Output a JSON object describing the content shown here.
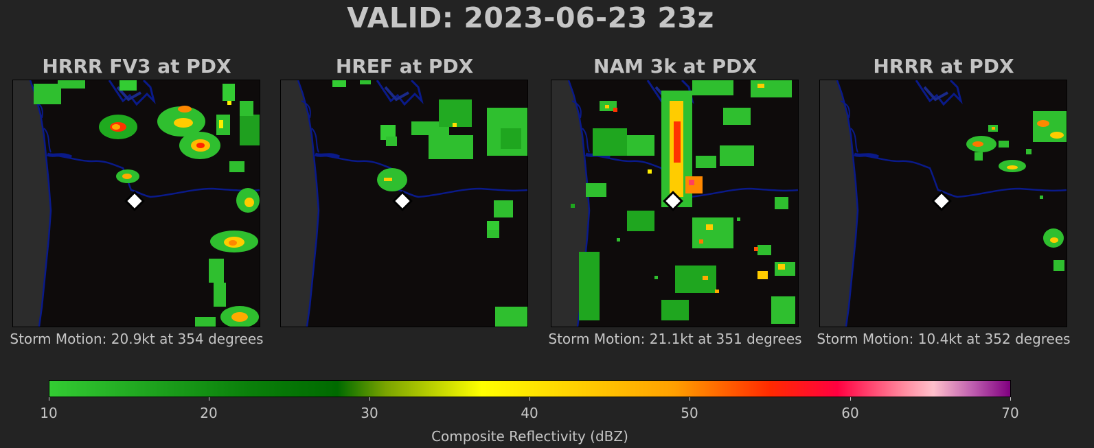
{
  "header": {
    "title": "VALID: 2023-06-23 23z"
  },
  "panels": [
    {
      "title": "HRRR FV3 at PDX",
      "storm_motion": "Storm Motion: 20.9kt at 354 degrees"
    },
    {
      "title": "HREF at PDX",
      "storm_motion": ""
    },
    {
      "title": "NAM 3k at PDX",
      "storm_motion": "Storm Motion: 21.1kt at 351 degrees"
    },
    {
      "title": "HRRR at PDX",
      "storm_motion": "Storm Motion: 10.4kt at 352 degrees"
    }
  ],
  "colorbar": {
    "label": "Composite Reflectivity (dBZ)",
    "ticks": [
      "10",
      "20",
      "30",
      "40",
      "50",
      "60",
      "70"
    ],
    "min": 10,
    "max": 70
  },
  "colors": {
    "background": "#232323",
    "land": "#0e0b0b",
    "ocean": "#2a2a2a",
    "rivers": "#0a1a8a",
    "marker": "#ffffff"
  },
  "icons": {
    "location_marker": "diamond-icon"
  }
}
